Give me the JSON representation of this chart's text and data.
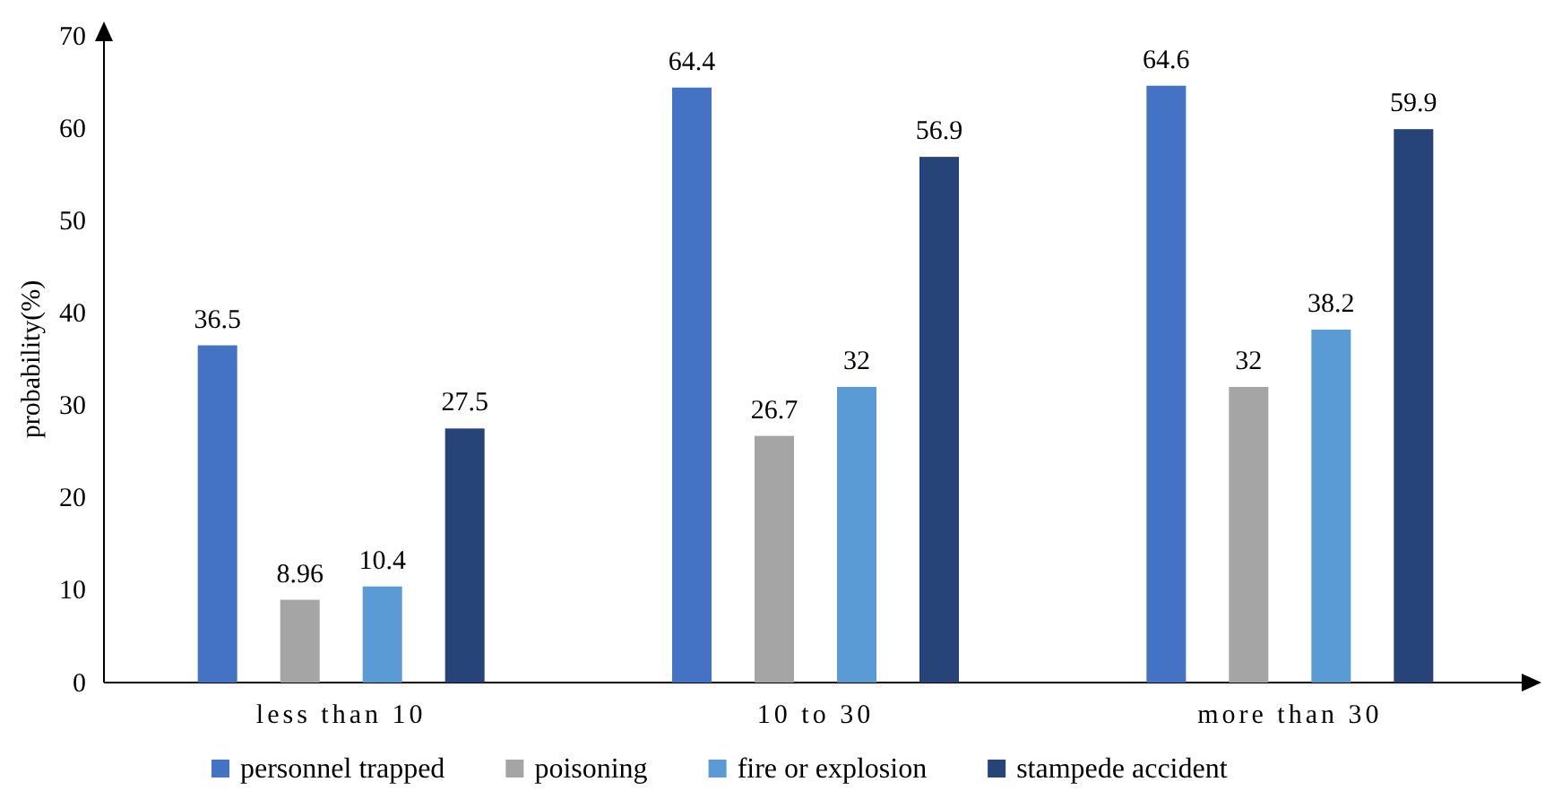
{
  "chart_data": {
    "type": "bar",
    "ylabel": "probability(%)",
    "categories": [
      "less than 10",
      "10 to 30",
      "more than 30"
    ],
    "series": [
      {
        "name": "personnel trapped",
        "color": "#4472c4",
        "values": [
          36.5,
          64.4,
          64.6
        ]
      },
      {
        "name": "poisoning",
        "color": "#a5a5a5",
        "values": [
          8.96,
          26.7,
          32
        ]
      },
      {
        "name": "fire or explosion",
        "color": "#5b9bd5",
        "values": [
          10.4,
          32,
          38.2
        ]
      },
      {
        "name": "stampede accident",
        "color": "#264478",
        "values": [
          27.5,
          56.9,
          59.9
        ]
      }
    ],
    "ylim": [
      0,
      70
    ],
    "yticks": [
      0,
      10,
      20,
      30,
      40,
      50,
      60,
      70
    ],
    "data_labels": true,
    "legend": "bottom",
    "grid": false
  }
}
